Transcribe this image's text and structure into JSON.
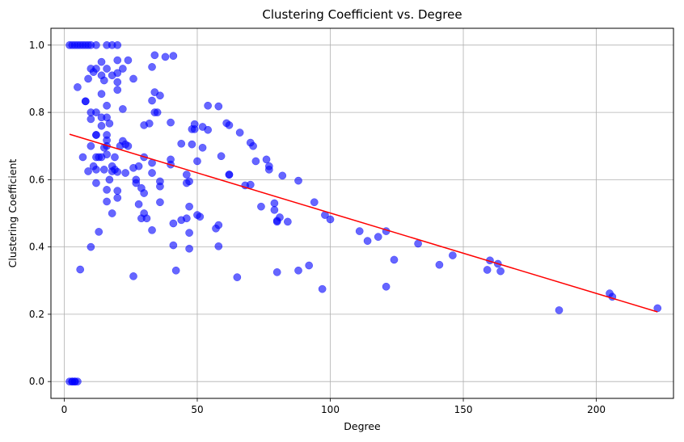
{
  "chart_data": {
    "type": "scatter",
    "title": "Clustering Coefficient vs. Degree",
    "xlabel": "Degree",
    "ylabel": "Clustering Coefficient",
    "xlim": [
      -5,
      229
    ],
    "ylim": [
      -0.05,
      1.05
    ],
    "xticks": [
      0,
      50,
      100,
      150,
      200
    ],
    "yticks": [
      0.0,
      0.2,
      0.4,
      0.6,
      0.8,
      1.0
    ],
    "xtick_labels": [
      "0",
      "50",
      "100",
      "150",
      "200"
    ],
    "ytick_labels": [
      "0.0",
      "0.2",
      "0.4",
      "0.6",
      "0.8",
      "1.0"
    ],
    "grid": true,
    "point_color": "#0000ff",
    "point_opacity": 0.6,
    "trend_color": "#ff0000",
    "trendline": {
      "x": [
        2,
        223
      ],
      "y": [
        0.735,
        0.207
      ]
    },
    "points": [
      [
        2,
        0
      ],
      [
        3,
        0
      ],
      [
        4,
        0
      ],
      [
        5,
        0
      ],
      [
        3,
        0
      ],
      [
        4,
        0
      ],
      [
        2,
        1
      ],
      [
        3,
        1
      ],
      [
        4,
        1
      ],
      [
        5,
        1
      ],
      [
        6,
        1
      ],
      [
        7,
        1
      ],
      [
        8,
        1
      ],
      [
        9,
        1
      ],
      [
        10,
        1
      ],
      [
        12,
        1
      ],
      [
        16,
        1
      ],
      [
        18,
        1
      ],
      [
        20,
        1
      ],
      [
        5,
        0.875
      ],
      [
        6,
        0.333
      ],
      [
        7,
        0.667
      ],
      [
        8,
        0.833
      ],
      [
        8,
        0.833
      ],
      [
        9,
        0.625
      ],
      [
        9,
        0.9
      ],
      [
        10,
        0.93
      ],
      [
        10,
        0.8
      ],
      [
        10,
        0.78
      ],
      [
        10,
        0.7
      ],
      [
        10,
        0.4
      ],
      [
        11,
        0.64
      ],
      [
        11,
        0.92
      ],
      [
        12,
        0.93
      ],
      [
        12,
        0.8
      ],
      [
        12,
        0.733
      ],
      [
        12,
        0.733
      ],
      [
        12,
        0.667
      ],
      [
        12,
        0.59
      ],
      [
        12,
        0.63
      ],
      [
        13,
        0.445
      ],
      [
        13,
        0.667
      ],
      [
        14,
        0.95
      ],
      [
        14,
        0.91
      ],
      [
        14,
        0.855
      ],
      [
        14,
        0.785
      ],
      [
        14,
        0.76
      ],
      [
        14,
        0.667
      ],
      [
        15,
        0.895
      ],
      [
        15,
        0.695
      ],
      [
        15,
        0.63
      ],
      [
        16,
        0.93
      ],
      [
        16,
        0.82
      ],
      [
        16,
        0.785
      ],
      [
        16,
        0.733
      ],
      [
        16,
        0.717
      ],
      [
        16,
        0.7
      ],
      [
        16,
        0.675
      ],
      [
        16,
        0.57
      ],
      [
        16,
        0.535
      ],
      [
        17,
        0.6
      ],
      [
        17,
        0.767
      ],
      [
        18,
        0.91
      ],
      [
        18,
        0.64
      ],
      [
        18,
        0.625
      ],
      [
        18,
        0.5
      ],
      [
        19,
        0.667
      ],
      [
        19,
        0.63
      ],
      [
        20,
        0.955
      ],
      [
        20,
        0.867
      ],
      [
        20,
        0.89
      ],
      [
        20,
        0.917
      ],
      [
        20,
        0.623
      ],
      [
        20,
        0.567
      ],
      [
        20,
        0.546
      ],
      [
        21,
        0.7
      ],
      [
        22,
        0.81
      ],
      [
        22,
        0.93
      ],
      [
        22,
        0.715
      ],
      [
        23,
        0.62
      ],
      [
        23,
        0.705
      ],
      [
        24,
        0.955
      ],
      [
        24,
        0.7
      ],
      [
        26,
        0.9
      ],
      [
        26,
        0.313
      ],
      [
        26,
        0.635
      ],
      [
        27,
        0.6
      ],
      [
        27,
        0.59
      ],
      [
        28,
        0.64
      ],
      [
        28,
        0.527
      ],
      [
        29,
        0.575
      ],
      [
        29,
        0.485
      ],
      [
        30,
        0.762
      ],
      [
        30,
        0.667
      ],
      [
        30,
        0.56
      ],
      [
        30,
        0.5
      ],
      [
        31,
        0.485
      ],
      [
        32,
        0.767
      ],
      [
        33,
        0.935
      ],
      [
        33,
        0.835
      ],
      [
        33,
        0.65
      ],
      [
        33,
        0.62
      ],
      [
        33,
        0.45
      ],
      [
        34,
        0.97
      ],
      [
        34,
        0.86
      ],
      [
        34,
        0.8
      ],
      [
        35,
        0.8
      ],
      [
        36,
        0.85
      ],
      [
        36,
        0.595
      ],
      [
        36,
        0.58
      ],
      [
        36,
        0.533
      ],
      [
        38,
        0.965
      ],
      [
        40,
        0.77
      ],
      [
        40,
        0.66
      ],
      [
        40,
        0.645
      ],
      [
        41,
        0.968
      ],
      [
        41,
        0.47
      ],
      [
        41,
        0.405
      ],
      [
        42,
        0.33
      ],
      [
        44,
        0.707
      ],
      [
        44,
        0.48
      ],
      [
        46,
        0.615
      ],
      [
        46,
        0.59
      ],
      [
        46,
        0.485
      ],
      [
        47,
        0.595
      ],
      [
        47,
        0.52
      ],
      [
        47,
        0.442
      ],
      [
        47,
        0.395
      ],
      [
        48,
        0.75
      ],
      [
        48,
        0.705
      ],
      [
        49,
        0.765
      ],
      [
        49,
        0.75
      ],
      [
        50,
        0.655
      ],
      [
        50,
        0.495
      ],
      [
        51,
        0.49
      ],
      [
        52,
        0.757
      ],
      [
        52,
        0.695
      ],
      [
        54,
        0.82
      ],
      [
        54,
        0.748
      ],
      [
        57,
        0.455
      ],
      [
        58,
        0.818
      ],
      [
        58,
        0.465
      ],
      [
        58,
        0.402
      ],
      [
        59,
        0.67
      ],
      [
        61,
        0.768
      ],
      [
        62,
        0.762
      ],
      [
        62,
        0.615
      ],
      [
        62,
        0.615
      ],
      [
        65,
        0.31
      ],
      [
        66,
        0.74
      ],
      [
        68,
        0.583
      ],
      [
        70,
        0.71
      ],
      [
        70,
        0.585
      ],
      [
        71,
        0.7
      ],
      [
        72,
        0.655
      ],
      [
        74,
        0.52
      ],
      [
        76,
        0.66
      ],
      [
        77,
        0.63
      ],
      [
        77,
        0.64
      ],
      [
        79,
        0.53
      ],
      [
        79,
        0.51
      ],
      [
        80,
        0.475
      ],
      [
        80,
        0.478
      ],
      [
        80,
        0.325
      ],
      [
        81,
        0.488
      ],
      [
        82,
        0.612
      ],
      [
        84,
        0.475
      ],
      [
        88,
        0.597
      ],
      [
        88,
        0.33
      ],
      [
        92,
        0.345
      ],
      [
        94,
        0.533
      ],
      [
        97,
        0.275
      ],
      [
        98,
        0.495
      ],
      [
        100,
        0.482
      ],
      [
        111,
        0.447
      ],
      [
        114,
        0.418
      ],
      [
        118,
        0.43
      ],
      [
        121,
        0.447
      ],
      [
        121,
        0.282
      ],
      [
        124,
        0.362
      ],
      [
        133,
        0.41
      ],
      [
        141,
        0.347
      ],
      [
        146,
        0.375
      ],
      [
        159,
        0.332
      ],
      [
        160,
        0.36
      ],
      [
        163,
        0.35
      ],
      [
        164,
        0.328
      ],
      [
        186,
        0.212
      ],
      [
        205,
        0.262
      ],
      [
        206,
        0.252
      ],
      [
        223,
        0.218
      ]
    ]
  }
}
